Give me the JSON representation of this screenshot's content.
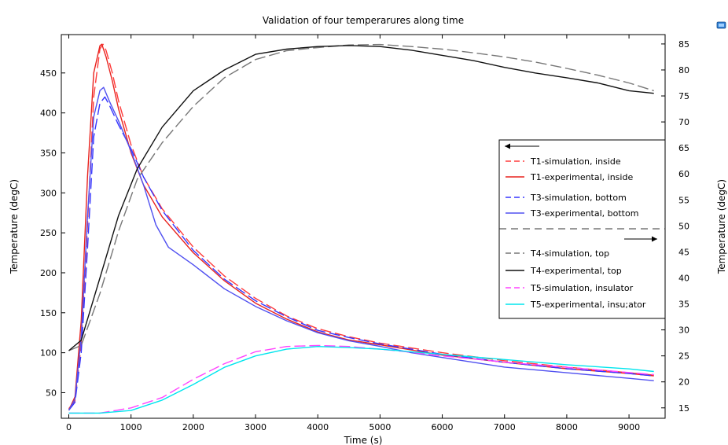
{
  "chart_data": {
    "type": "line",
    "title": "Validation of four temperarures along time",
    "xlabel": "Time (s)",
    "ylabel_left": "Temperature (degC)",
    "ylabel_right": "Temperature (degC)",
    "xlim": [
      -120,
      9580
    ],
    "ylim_left": [
      18,
      498
    ],
    "ylim_right": [
      13,
      86.8
    ],
    "x_ticks": [
      0,
      1000,
      2000,
      3000,
      4000,
      5000,
      6000,
      7000,
      8000,
      9000
    ],
    "y_ticks_left": [
      50,
      100,
      150,
      200,
      250,
      300,
      350,
      400,
      450
    ],
    "y_ticks_right": [
      15,
      20,
      25,
      30,
      35,
      40,
      45,
      50,
      55,
      60,
      65,
      70,
      75,
      80,
      85
    ],
    "grid": false,
    "legend_position": "center-right",
    "legend_groups": [
      {
        "axis": "left",
        "arrow": "left",
        "entries": [
          0,
          1,
          2,
          3
        ]
      },
      {
        "axis": "right",
        "arrow": "right",
        "entries": [
          4,
          5,
          6,
          7
        ]
      }
    ],
    "series": [
      {
        "name": "T1-simulation, inside",
        "axis": "left",
        "color": "#ff3b3b",
        "dash": true,
        "x": [
          0,
          100,
          200,
          300,
          400,
          500,
          550,
          600,
          700,
          800,
          1000,
          1200,
          1500,
          2000,
          2500,
          3000,
          3500,
          4000,
          4500,
          5000,
          6000,
          7000,
          8000,
          9000,
          9400
        ],
        "y": [
          30,
          40,
          110,
          260,
          420,
          480,
          486,
          478,
          450,
          415,
          360,
          320,
          280,
          232,
          196,
          168,
          146,
          130,
          120,
          112,
          100,
          90,
          82,
          75,
          72
        ]
      },
      {
        "name": "T1-experimental, inside",
        "axis": "left",
        "color": "#e8231e",
        "dash": false,
        "x": [
          0,
          100,
          200,
          300,
          400,
          500,
          530,
          600,
          700,
          800,
          1000,
          1200,
          1500,
          2000,
          2500,
          3000,
          3500,
          4000,
          4500,
          5000,
          6000,
          7000,
          8000,
          9000,
          9400
        ],
        "y": [
          28,
          45,
          140,
          320,
          450,
          484,
          486,
          470,
          440,
          405,
          350,
          310,
          270,
          225,
          190,
          162,
          142,
          126,
          116,
          110,
          97,
          88,
          80,
          74,
          71
        ]
      },
      {
        "name": "T3-simulation, bottom",
        "axis": "left",
        "color": "#3535ff",
        "dash": true,
        "x": [
          0,
          100,
          200,
          300,
          400,
          500,
          580,
          650,
          800,
          1000,
          1200,
          1500,
          2000,
          2500,
          3000,
          3500,
          4000,
          4500,
          5000,
          6000,
          7000,
          8000,
          9000,
          9400
        ],
        "y": [
          28,
          38,
          100,
          230,
          370,
          412,
          420,
          410,
          385,
          355,
          320,
          278,
          228,
          192,
          165,
          145,
          128,
          119,
          111,
          98,
          88,
          80,
          74,
          71
        ]
      },
      {
        "name": "T3-experimental, bottom",
        "axis": "left",
        "color": "#5050f0",
        "dash": false,
        "x": [
          0,
          100,
          200,
          300,
          400,
          500,
          560,
          650,
          800,
          1000,
          1200,
          1400,
          1600,
          2000,
          2500,
          3000,
          3500,
          4000,
          4500,
          5000,
          5500,
          6000,
          6500,
          7000,
          8000,
          9000,
          9400
        ],
        "y": [
          28,
          42,
          120,
          270,
          395,
          428,
          432,
          415,
          390,
          352,
          310,
          260,
          232,
          210,
          180,
          158,
          140,
          125,
          115,
          108,
          100,
          94,
          88,
          82,
          75,
          68,
          65
        ]
      },
      {
        "name": "T4-simulation, top",
        "axis": "right",
        "color": "#777777",
        "dash": true,
        "x": [
          0,
          200,
          500,
          800,
          1100,
          1500,
          2000,
          2500,
          3000,
          3500,
          4000,
          4500,
          5000,
          5500,
          6000,
          6500,
          7000,
          7500,
          8000,
          8500,
          9000,
          9400
        ],
        "y": [
          26,
          27,
          37,
          49,
          59,
          66,
          73,
          78.5,
          82,
          83.7,
          84.3,
          84.8,
          84.9,
          84.5,
          84,
          83.3,
          82.5,
          81.5,
          80.3,
          79,
          77.5,
          76
        ]
      },
      {
        "name": "T4-experimental, top",
        "axis": "right",
        "color": "#111111",
        "dash": false,
        "x": [
          0,
          200,
          500,
          800,
          1100,
          1500,
          2000,
          2500,
          3000,
          3500,
          4000,
          4500,
          5000,
          5500,
          6000,
          6500,
          7000,
          7500,
          8000,
          8500,
          9000,
          9400
        ],
        "y": [
          26,
          28,
          40,
          52,
          61,
          69,
          76,
          80,
          83,
          84,
          84.5,
          84.7,
          84.5,
          83.8,
          82.8,
          81.8,
          80.5,
          79.4,
          78.5,
          77.5,
          76,
          75.5
        ]
      },
      {
        "name": "T5-simulation, insulator",
        "axis": "right",
        "color": "#ff44ff",
        "dash": true,
        "x": [
          0,
          500,
          1000,
          1500,
          2000,
          2500,
          3000,
          3500,
          4000,
          4500,
          5000,
          5500,
          6000,
          6500,
          7000,
          8000,
          9000,
          9400
        ],
        "y": [
          14,
          14,
          15,
          17,
          20.5,
          23.5,
          25.8,
          26.8,
          27,
          26.8,
          26.3,
          25.7,
          25,
          24.4,
          23.8,
          22.8,
          21.8,
          21.4
        ]
      },
      {
        "name": "T5-experimental, insu;ator",
        "axis": "right",
        "color": "#00e5ee",
        "dash": false,
        "x": [
          0,
          500,
          1000,
          1500,
          2000,
          2500,
          3000,
          3500,
          4000,
          4500,
          5000,
          5500,
          6000,
          6500,
          7000,
          8000,
          9000,
          9400
        ],
        "y": [
          14,
          14,
          14.5,
          16.5,
          19.5,
          22.8,
          25,
          26.3,
          26.8,
          26.6,
          26.3,
          25.8,
          25.3,
          24.8,
          24.3,
          23.3,
          22.5,
          22
        ]
      }
    ]
  },
  "corner_icon": "window-restore-icon"
}
